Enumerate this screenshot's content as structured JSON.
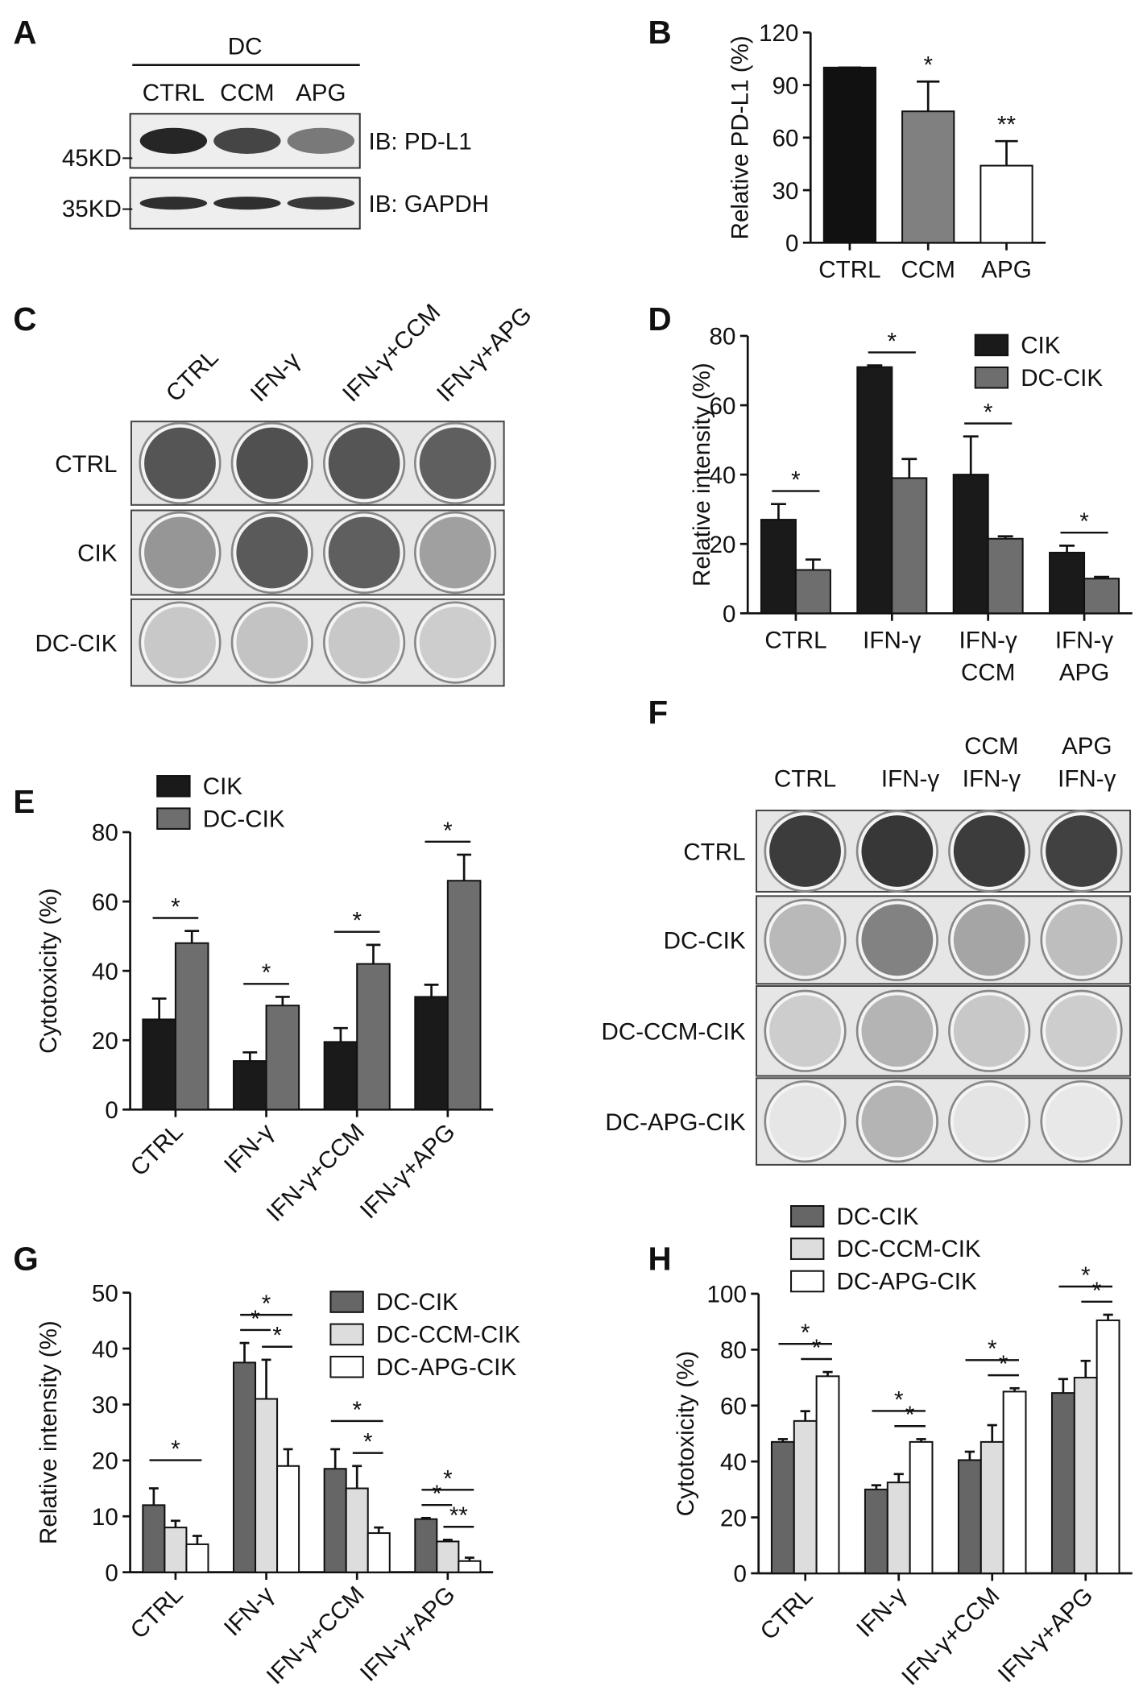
{
  "panels": [
    "A",
    "B",
    "C",
    "D",
    "E",
    "F",
    "G",
    "H"
  ],
  "blot": {
    "group": "DC",
    "lanes": [
      "CTRL",
      "CCM",
      "APG"
    ],
    "rows": [
      {
        "label": "IB: PD-L1",
        "marker": "45KD"
      },
      {
        "label": "IB: GAPDH",
        "marker": "35KD"
      }
    ]
  },
  "plate_c": {
    "columns": [
      "CTRL",
      "IFN-γ",
      "IFN-γ+CCM",
      "IFN-γ+APG"
    ],
    "rows": [
      "CTRL",
      "CIK",
      "DC-CIK"
    ]
  },
  "plate_f": {
    "columns": [
      "CTRL",
      "IFN-γ",
      [
        "CCM",
        "IFN-γ"
      ],
      [
        "APG",
        "IFN-γ"
      ]
    ],
    "rows": [
      "CTRL",
      "DC-CIK",
      "DC-CCM-CIK",
      "DC-APG-CIK"
    ]
  },
  "chart_data": [
    {
      "type": "bar",
      "y_label": "Relative PD-L1 (%)",
      "categories": [
        "CTRL",
        "CCM",
        "APG"
      ],
      "values": [
        100,
        75,
        44
      ],
      "errors": [
        0,
        17,
        14
      ],
      "colors": [
        "#111111",
        "#808080",
        "#ffffff"
      ],
      "ylim": [
        0,
        120
      ],
      "yticks": [
        0,
        30,
        60,
        90,
        120
      ],
      "annotations": [
        {
          "text": "*",
          "category": 1
        },
        {
          "text": "**",
          "category": 2
        }
      ]
    },
    {
      "type": "bar",
      "y_label": "Relative intensity (%)",
      "categories": [
        "CTRL",
        "IFN-γ",
        [
          "IFN-γ",
          "CCM"
        ],
        [
          "IFN-γ",
          "APG"
        ]
      ],
      "series": [
        {
          "name": "CIK",
          "color": "#1a1a1a",
          "values": [
            27,
            71,
            40,
            17.5
          ],
          "errors": [
            4.5,
            0.5,
            11,
            2
          ]
        },
        {
          "name": "DC-CIK",
          "color": "#6e6e6e",
          "values": [
            12.5,
            39,
            21.5,
            10
          ],
          "errors": [
            3,
            5.5,
            0.7,
            0.5
          ]
        }
      ],
      "ylim": [
        0,
        80
      ],
      "yticks": [
        0,
        20,
        40,
        60,
        80
      ],
      "legend": "upper right",
      "annotations": [
        {
          "text": "*",
          "category": 0,
          "between": [
            0,
            1
          ]
        },
        {
          "text": "*",
          "category": 1,
          "between": [
            0,
            1
          ]
        },
        {
          "text": "*",
          "category": 2,
          "between": [
            0,
            1
          ]
        },
        {
          "text": "*",
          "category": 3,
          "between": [
            0,
            1
          ]
        }
      ]
    },
    {
      "type": "bar",
      "y_label": "Cytotoxicity (%)",
      "categories": [
        "CTRL",
        "IFN-γ",
        "IFN-γ+CCM",
        "IFN-γ+APG"
      ],
      "series": [
        {
          "name": "CIK",
          "color": "#1a1a1a",
          "values": [
            26,
            14,
            19.5,
            32.5
          ],
          "errors": [
            6,
            2.5,
            4,
            3.5
          ]
        },
        {
          "name": "DC-CIK",
          "color": "#6e6e6e",
          "values": [
            48,
            30,
            42,
            66
          ],
          "errors": [
            3.5,
            2.5,
            5.5,
            7.5
          ]
        }
      ],
      "ylim": [
        0,
        80
      ],
      "yticks": [
        0,
        20,
        40,
        60,
        80
      ],
      "legend": "upper left",
      "annotations": [
        {
          "text": "*",
          "category": 0,
          "between": [
            0,
            1
          ]
        },
        {
          "text": "*",
          "category": 1,
          "between": [
            0,
            1
          ]
        },
        {
          "text": "*",
          "category": 2,
          "between": [
            0,
            1
          ]
        },
        {
          "text": "*",
          "category": 3,
          "between": [
            0,
            1
          ]
        }
      ]
    },
    {
      "type": "bar",
      "y_label": "Relative intensity (%)",
      "categories": [
        "CTRL",
        "IFN-γ",
        "IFN-γ+CCM",
        "IFN-γ+APG"
      ],
      "series": [
        {
          "name": "DC-CIK",
          "color": "#666666",
          "values": [
            12,
            37.5,
            18.5,
            9.5
          ],
          "errors": [
            3,
            3.5,
            3.5,
            0.2
          ]
        },
        {
          "name": "DC-CCM-CIK",
          "color": "#dddddd",
          "values": [
            8,
            31,
            15,
            5.5
          ],
          "errors": [
            1.2,
            7,
            4,
            0.3
          ]
        },
        {
          "name": "DC-APG-CIK",
          "color": "#ffffff",
          "values": [
            5,
            19,
            7,
            2
          ],
          "errors": [
            1.5,
            3,
            1,
            0.6
          ]
        }
      ],
      "ylim": [
        0,
        50
      ],
      "yticks": [
        0,
        10,
        20,
        30,
        40,
        50
      ],
      "legend": "upper right",
      "annotations": [
        {
          "text": "*",
          "category": 0,
          "between": [
            0,
            2
          ]
        },
        {
          "text": "*",
          "category": 1,
          "between": [
            0,
            2
          ]
        },
        {
          "text": "*",
          "category": 1,
          "between": [
            0,
            1
          ]
        },
        {
          "text": "*",
          "category": 1,
          "between": [
            1,
            2
          ]
        },
        {
          "text": "*",
          "category": 2,
          "between": [
            0,
            2
          ]
        },
        {
          "text": "*",
          "category": 2,
          "between": [
            1,
            2
          ]
        },
        {
          "text": "*",
          "category": 3,
          "between": [
            0,
            2
          ]
        },
        {
          "text": "*",
          "category": 3,
          "between": [
            0,
            1
          ]
        },
        {
          "text": "**",
          "category": 3,
          "between": [
            1,
            2
          ]
        }
      ]
    },
    {
      "type": "bar",
      "y_label": "Cytotoxicity (%)",
      "categories": [
        "CTRL",
        "IFN-γ",
        "IFN-γ+CCM",
        "IFN-γ+APG"
      ],
      "series": [
        {
          "name": "DC-CIK",
          "color": "#666666",
          "values": [
            47,
            30,
            40.5,
            64.5
          ],
          "errors": [
            1,
            1.5,
            3,
            5
          ]
        },
        {
          "name": "DC-CCM-CIK",
          "color": "#dddddd",
          "values": [
            54.5,
            32.5,
            47,
            70
          ],
          "errors": [
            3.5,
            3,
            6,
            6
          ]
        },
        {
          "name": "DC-APG-CIK",
          "color": "#ffffff",
          "values": [
            70.5,
            47,
            65,
            90.5
          ],
          "errors": [
            1.5,
            1,
            1.2,
            2
          ]
        }
      ],
      "ylim": [
        0,
        100
      ],
      "yticks": [
        0,
        20,
        40,
        60,
        80,
        100
      ],
      "legend": "upper left",
      "annotations": [
        {
          "text": "*",
          "category": 0,
          "between": [
            0,
            2
          ]
        },
        {
          "text": "*",
          "category": 0,
          "between": [
            1,
            2
          ]
        },
        {
          "text": "*",
          "category": 1,
          "between": [
            0,
            2
          ]
        },
        {
          "text": "*",
          "category": 1,
          "between": [
            1,
            2
          ]
        },
        {
          "text": "*",
          "category": 2,
          "between": [
            0,
            2
          ]
        },
        {
          "text": "*",
          "category": 2,
          "between": [
            1,
            2
          ]
        },
        {
          "text": "*",
          "category": 3,
          "between": [
            0,
            2
          ]
        },
        {
          "text": "*",
          "category": 3,
          "between": [
            1,
            2
          ]
        }
      ]
    }
  ]
}
